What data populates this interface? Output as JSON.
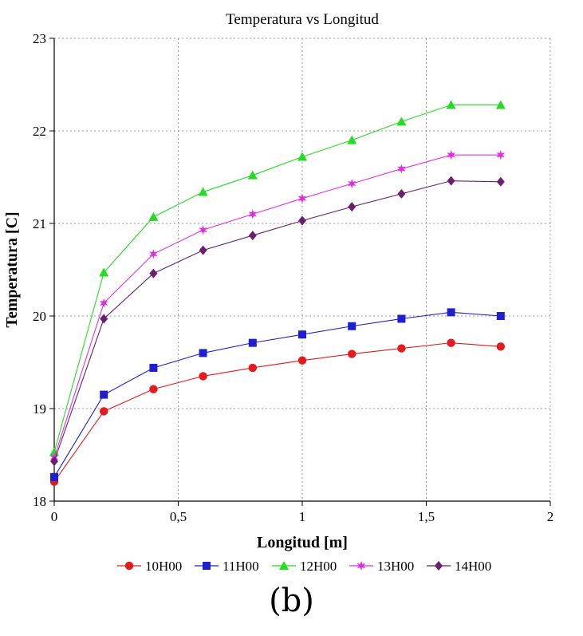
{
  "chart_data": {
    "type": "line",
    "title": "Temperatura vs Longitud",
    "xlabel": "Longitud [m]",
    "ylabel": "Temperatura [C]",
    "xlim": [
      0,
      2
    ],
    "ylim": [
      18,
      23
    ],
    "x_ticks": [
      0,
      0.5,
      1,
      1.5,
      2
    ],
    "x_tick_labels": [
      "0",
      "0,5",
      "1",
      "1,5",
      "2"
    ],
    "y_ticks": [
      18,
      19,
      20,
      21,
      22,
      23
    ],
    "y_tick_labels": [
      "18",
      "19",
      "20",
      "21",
      "22",
      "23"
    ],
    "grid": true,
    "legend_position": "bottom",
    "x": [
      0,
      0.2,
      0.4,
      0.6,
      0.8,
      1.0,
      1.2,
      1.4,
      1.6,
      1.8
    ],
    "series": [
      {
        "name": "10H00",
        "color": "#e41a1c",
        "marker": "circle",
        "values": [
          18.21,
          18.97,
          19.21,
          19.35,
          19.44,
          19.52,
          19.59,
          19.65,
          19.71,
          19.67
        ]
      },
      {
        "name": "11H00",
        "color": "#1f1fd1",
        "marker": "square",
        "values": [
          18.26,
          19.15,
          19.44,
          19.6,
          19.71,
          19.8,
          19.89,
          19.97,
          20.04,
          20.0
        ]
      },
      {
        "name": "12H00",
        "color": "#22dd22",
        "marker": "triangle",
        "values": [
          18.53,
          20.47,
          21.07,
          21.34,
          21.52,
          21.72,
          21.9,
          22.1,
          22.28,
          22.28
        ]
      },
      {
        "name": "13H00",
        "color": "#e22ee2",
        "marker": "star",
        "values": [
          18.47,
          20.14,
          20.67,
          20.93,
          21.1,
          21.27,
          21.43,
          21.59,
          21.74,
          21.74
        ]
      },
      {
        "name": "14H00",
        "color": "#6b1f6e",
        "marker": "diamond",
        "values": [
          18.43,
          19.97,
          20.46,
          20.71,
          20.87,
          21.03,
          21.18,
          21.32,
          21.46,
          21.45
        ]
      }
    ]
  },
  "caption": "(b)"
}
